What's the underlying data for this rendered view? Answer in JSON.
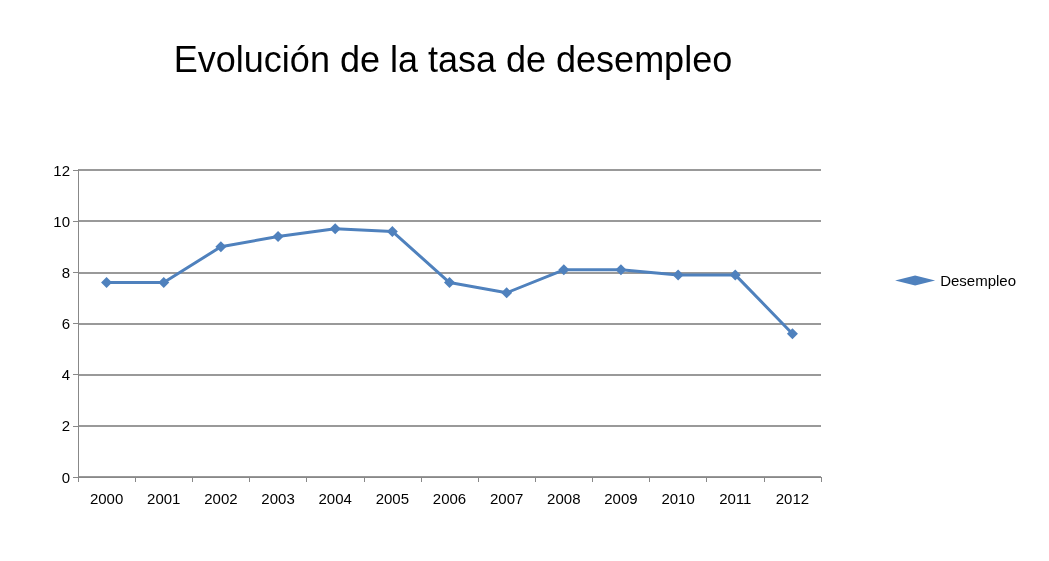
{
  "chart_data": {
    "type": "line",
    "title": "Evolución de la tasa de desempleo",
    "categories": [
      "2000",
      "2001",
      "2002",
      "2003",
      "2004",
      "2005",
      "2006",
      "2007",
      "2008",
      "2009",
      "2010",
      "2011",
      "2012"
    ],
    "series": [
      {
        "name": "Desempleo",
        "color": "#4f81bd",
        "values": [
          7.6,
          7.6,
          9.0,
          9.4,
          9.7,
          9.6,
          7.6,
          7.2,
          8.1,
          8.1,
          7.9,
          7.9,
          5.6
        ]
      }
    ],
    "ylim": [
      0,
      12
    ],
    "yticks": [
      0,
      2,
      4,
      6,
      8,
      10,
      12
    ],
    "grid": "y",
    "legend": "right",
    "marker": "diamond",
    "line_style": "solid"
  }
}
